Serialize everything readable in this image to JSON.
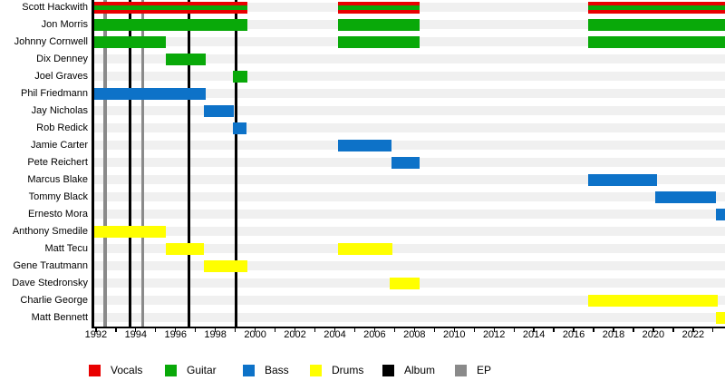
{
  "chart_data": {
    "type": "bar",
    "subtype": "band-member-timeline-gantt",
    "title": "",
    "axis": {
      "start": 1991.8,
      "end": 2023.6,
      "label_tick_years": [
        1992,
        1994,
        1996,
        1998,
        2000,
        2002,
        2004,
        2006,
        2008,
        2010,
        2012,
        2014,
        2016,
        2018,
        2020,
        2022
      ],
      "minor_tick_every": 1,
      "minor_tick_start": 1992,
      "minor_tick_end": 2023
    },
    "x_tick_labels": [
      "1992",
      "1994",
      "1996",
      "1998",
      "2000",
      "2002",
      "2004",
      "2006",
      "2008",
      "2010",
      "2012",
      "2014",
      "2016",
      "2018",
      "2020",
      "2022"
    ],
    "role_colors": {
      "vocals": "#e90000",
      "guitar": "#09a909",
      "bass": "#0d72c8",
      "drums": "#ffff00"
    },
    "event_colors": {
      "album": "#000000",
      "ep": "#8a8a8a"
    },
    "albums": [
      1993.69,
      1996.65,
      1999.06
    ],
    "eps": [
      1992.46,
      1994.35
    ],
    "members": [
      {
        "name": "Scott Hackwith",
        "roles": [
          "vocals",
          "guitar"
        ],
        "bars": [
          [
            1991.8,
            1999.61
          ],
          [
            2004.18,
            2008.28
          ],
          [
            2016.71,
            2023.6
          ]
        ]
      },
      {
        "name": "Jon Morris",
        "roles": [
          "guitar"
        ],
        "bars": [
          [
            1991.8,
            1999.61
          ],
          [
            2004.18,
            2008.28
          ],
          [
            2016.71,
            2023.6
          ]
        ]
      },
      {
        "name": "Johnny Cornwell",
        "roles": [
          "guitar"
        ],
        "bars": [
          [
            1991.8,
            1995.49
          ],
          [
            2004.18,
            2008.28
          ],
          [
            2016.71,
            2023.6
          ]
        ]
      },
      {
        "name": "Dix Denney",
        "roles": [
          "guitar"
        ],
        "bars": [
          [
            1995.49,
            1997.5
          ]
        ]
      },
      {
        "name": "Joel Graves",
        "roles": [
          "guitar"
        ],
        "bars": [
          [
            1998.88,
            1999.61
          ]
        ]
      },
      {
        "name": "Phil Friedmann",
        "roles": [
          "bass"
        ],
        "bars": [
          [
            1991.8,
            1997.5
          ]
        ]
      },
      {
        "name": "Jay Nicholas",
        "roles": [
          "bass"
        ],
        "bars": [
          [
            1997.42,
            1998.94
          ]
        ]
      },
      {
        "name": "Rob Redick",
        "roles": [
          "bass"
        ],
        "bars": [
          [
            1998.88,
            1999.55
          ]
        ]
      },
      {
        "name": "Jamie Carter",
        "roles": [
          "bass"
        ],
        "bars": [
          [
            2004.18,
            2006.83
          ]
        ]
      },
      {
        "name": "Pete Reichert",
        "roles": [
          "bass"
        ],
        "bars": [
          [
            2006.83,
            2008.28
          ]
        ]
      },
      {
        "name": "Marcus Blake",
        "roles": [
          "bass"
        ],
        "bars": [
          [
            2016.71,
            2020.19
          ]
        ]
      },
      {
        "name": "Tommy Black",
        "roles": [
          "bass"
        ],
        "bars": [
          [
            2020.11,
            2023.15
          ]
        ]
      },
      {
        "name": "Ernesto Mora",
        "roles": [
          "bass"
        ],
        "bars": [
          [
            2023.15,
            2023.6
          ]
        ]
      },
      {
        "name": "Anthony Smedile",
        "roles": [
          "drums"
        ],
        "bars": [
          [
            1991.8,
            1995.49
          ]
        ]
      },
      {
        "name": "Matt Tecu",
        "roles": [
          "drums"
        ],
        "bars": [
          [
            1995.49,
            1997.42
          ],
          [
            2004.18,
            2006.9
          ]
        ]
      },
      {
        "name": "Gene Trautmann",
        "roles": [
          "drums"
        ],
        "bars": [
          [
            1997.42,
            1999.61
          ]
        ]
      },
      {
        "name": "Dave Stedronsky",
        "roles": [
          "drums"
        ],
        "bars": [
          [
            2006.76,
            2008.28
          ]
        ]
      },
      {
        "name": "Charlie George",
        "roles": [
          "drums"
        ],
        "bars": [
          [
            2016.71,
            2023.22
          ]
        ]
      },
      {
        "name": "Matt Bennett",
        "roles": [
          "drums"
        ],
        "bars": [
          [
            2023.15,
            2023.6
          ]
        ]
      }
    ],
    "layout_hints": {
      "legend_position": "bottom",
      "grid": "off",
      "row_stripe_color": "#f0f0f0",
      "background": "#ffffff"
    }
  },
  "legend": {
    "items": [
      {
        "id": "vocals",
        "label": "Vocals",
        "color": "#e90000"
      },
      {
        "id": "guitar",
        "label": "Guitar",
        "color": "#09a909"
      },
      {
        "id": "bass",
        "label": "Bass",
        "color": "#0d72c8"
      },
      {
        "id": "drums",
        "label": "Drums",
        "color": "#ffff00"
      },
      {
        "id": "album",
        "label": "Album",
        "color": "#000000"
      },
      {
        "id": "ep",
        "label": "EP",
        "color": "#8a8a8a"
      }
    ]
  }
}
